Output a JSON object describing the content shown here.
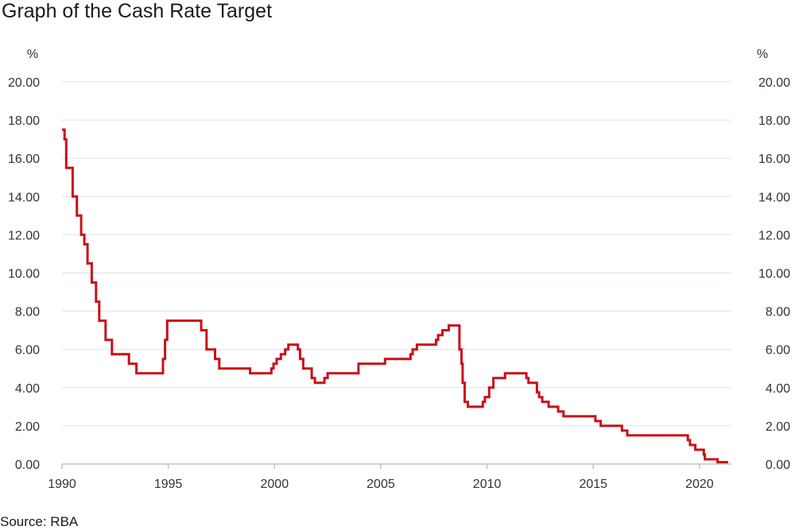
{
  "title": "Graph of the Cash Rate Target",
  "source": "Source: RBA",
  "chart_data": {
    "type": "line",
    "title": "Graph of the Cash Rate Target",
    "xlabel": "",
    "ylabel": "%",
    "y_unit_left": "%",
    "y_unit_right": "%",
    "xlim": [
      1990.0,
      2021.5
    ],
    "ylim": [
      0,
      20
    ],
    "y_ticks": [
      "0.00",
      "2.00",
      "4.00",
      "6.00",
      "8.00",
      "10.00",
      "12.00",
      "14.00",
      "16.00",
      "18.00",
      "20.00"
    ],
    "x_ticks": [
      "1990",
      "1995",
      "2000",
      "2005",
      "2010",
      "2015",
      "2020"
    ],
    "grid": true,
    "legend": "none",
    "series": [
      {
        "color": "#c8101a",
        "x": [
          1990.0,
          1990.12,
          1990.2,
          1990.3,
          1990.5,
          1990.7,
          1990.9,
          1991.05,
          1991.2,
          1991.4,
          1991.6,
          1991.75,
          1991.9,
          1992.05,
          1992.35,
          1992.45,
          1992.55,
          1993.15,
          1993.5,
          1993.55,
          1994.65,
          1994.75,
          1994.85,
          1994.95,
          1996.55,
          1996.8,
          1997.2,
          1997.4,
          1997.5,
          1998.85,
          1999.85,
          1999.95,
          2000.1,
          2000.3,
          2000.5,
          2000.65,
          2001.1,
          2001.2,
          2001.35,
          2001.75,
          2001.9,
          2002.35,
          2002.5,
          2003.9,
          2003.95,
          2005.2,
          2006.4,
          2006.5,
          2006.7,
          2006.85,
          2007.6,
          2007.7,
          2007.9,
          2008.2,
          2008.7,
          2008.8,
          2008.85,
          2008.95,
          2009.1,
          2009.3,
          2009.8,
          2009.9,
          2010.1,
          2010.3,
          2010.85,
          2011.85,
          2011.95,
          2012.35,
          2012.45,
          2012.6,
          2012.9,
          2013.35,
          2013.6,
          2015.1,
          2015.35,
          2016.35,
          2016.6,
          2019.45,
          2019.55,
          2019.8,
          2020.2,
          2020.25,
          2020.85,
          2020.9,
          2021.35
        ],
        "y": [
          17.5,
          17.0,
          15.5,
          15.5,
          14.0,
          13.0,
          12.0,
          11.5,
          10.5,
          9.5,
          8.5,
          7.5,
          7.5,
          6.5,
          5.75,
          5.75,
          5.75,
          5.25,
          4.75,
          4.75,
          4.75,
          5.5,
          6.5,
          7.5,
          7.0,
          6.0,
          5.5,
          5.0,
          5.0,
          4.75,
          5.0,
          5.25,
          5.5,
          5.75,
          6.0,
          6.25,
          6.0,
          5.5,
          5.0,
          4.5,
          4.25,
          4.5,
          4.75,
          4.75,
          5.25,
          5.5,
          5.75,
          6.0,
          6.25,
          6.25,
          6.5,
          6.75,
          7.0,
          7.25,
          6.0,
          5.25,
          4.25,
          3.25,
          3.0,
          3.0,
          3.25,
          3.5,
          4.0,
          4.5,
          4.75,
          4.5,
          4.25,
          3.75,
          3.5,
          3.25,
          3.0,
          2.75,
          2.5,
          2.25,
          2.0,
          1.75,
          1.5,
          1.25,
          1.0,
          0.75,
          0.5,
          0.25,
          0.1,
          0.1,
          0.1
        ]
      }
    ]
  }
}
